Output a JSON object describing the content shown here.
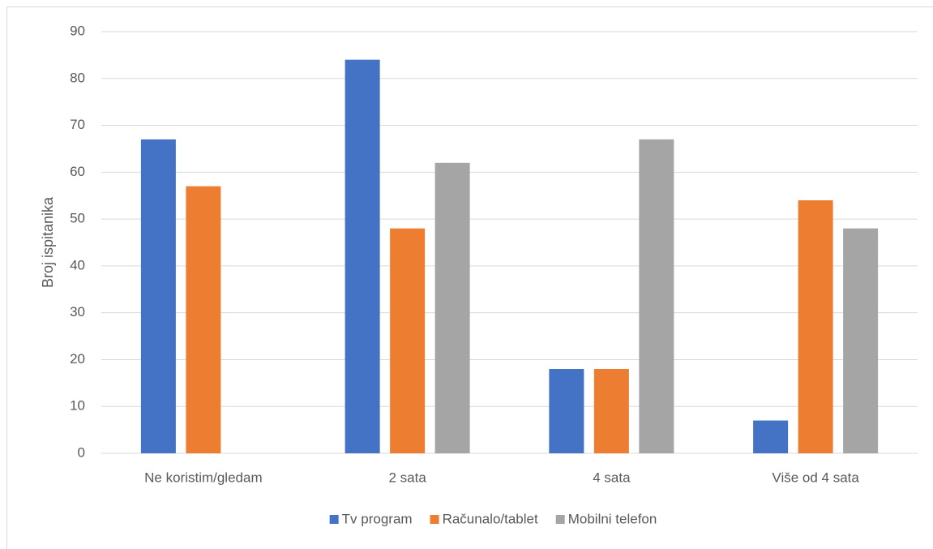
{
  "chart_data": {
    "type": "bar",
    "categories": [
      "Ne koristim/gledam",
      "2 sata",
      "4 sata",
      "Više od 4 sata"
    ],
    "series": [
      {
        "name": "Tv program",
        "color": "#4472c4",
        "values": [
          67,
          84,
          18,
          7
        ]
      },
      {
        "name": "Računalo/tablet",
        "color": "#ed7d31",
        "values": [
          57,
          48,
          18,
          54
        ]
      },
      {
        "name": "Mobilni telefon",
        "color": "#a5a5a5",
        "values": [
          0,
          62,
          67,
          48
        ]
      }
    ],
    "y_label": "Broj ispitanika",
    "ylim": [
      0,
      90
    ],
    "yticks": [
      0,
      10,
      20,
      30,
      40,
      50,
      60,
      70,
      80,
      90
    ],
    "grid": true,
    "legend": "bottom"
  }
}
